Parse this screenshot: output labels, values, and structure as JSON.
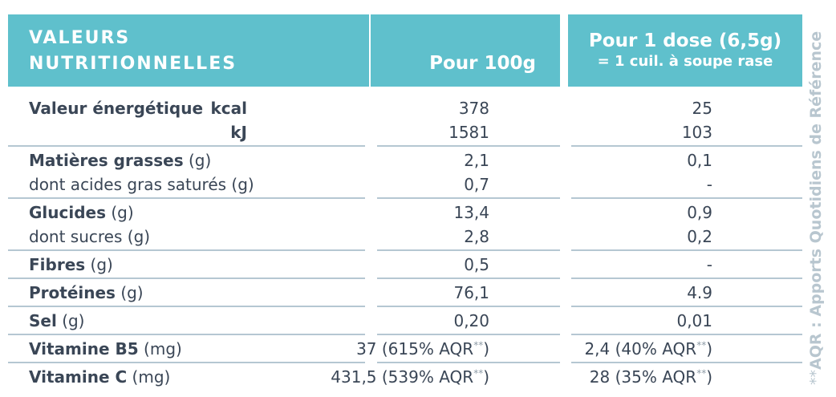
{
  "header": {
    "title_lines": [
      "VALEURS",
      "NUTRITIONNELLES"
    ],
    "per_100g": "Pour 100g",
    "per_dose": "Pour 1 dose (6,5g)",
    "per_dose_note": "= 1 cuil. à soupe rase"
  },
  "side_note": {
    "mark": "**",
    "text": "AQR : Apports Quotidiens de Référence"
  },
  "groups": [
    {
      "rows": [
        {
          "bold": "Valeur énergétique",
          "unit": "kcal",
          "per_100g": "378",
          "per_dose": "25"
        },
        {
          "unit": "kJ",
          "per_100g": "1581",
          "per_dose": "103"
        }
      ]
    },
    {
      "rows": [
        {
          "bold": "Matières grasses",
          "normal": "(g)",
          "per_100g": "2,1",
          "per_dose": "0,1"
        },
        {
          "normal": "dont acides gras saturés (g)",
          "per_100g": "0,7",
          "per_dose": "-"
        }
      ]
    },
    {
      "rows": [
        {
          "bold": "Glucides",
          "normal": "(g)",
          "per_100g": "13,4",
          "per_dose": "0,9"
        },
        {
          "normal": "dont sucres (g)",
          "per_100g": "2,8",
          "per_dose": "0,2"
        }
      ]
    },
    {
      "rows": [
        {
          "bold": "Fibres",
          "normal": "(g)",
          "per_100g": "0,5",
          "per_dose": "-"
        }
      ]
    },
    {
      "rows": [
        {
          "bold": "Protéines",
          "normal": "(g)",
          "per_100g": "76,1",
          "per_dose": "4.9"
        }
      ]
    },
    {
      "rows": [
        {
          "bold": "Sel",
          "normal": "(g)",
          "per_100g": "0,20",
          "per_dose": "0,01"
        }
      ]
    },
    {
      "rows": [
        {
          "bold": "Vitamine B5",
          "normal": "(mg)",
          "per_100g": {
            "main": "37 (615% AQR",
            "sup": "**",
            "end": ")"
          },
          "per_dose": {
            "main": "2,4 (40% AQR",
            "sup": "**",
            "end": ")"
          }
        }
      ]
    },
    {
      "rows": [
        {
          "bold": "Vitamine C",
          "normal": "(mg)",
          "per_100g": {
            "main": "431,5 (539% AQR",
            "sup": "**",
            "end": ")"
          },
          "per_dose": {
            "main": "28 (35% AQR",
            "sup": "**",
            "end": ")"
          }
        }
      ]
    }
  ]
}
